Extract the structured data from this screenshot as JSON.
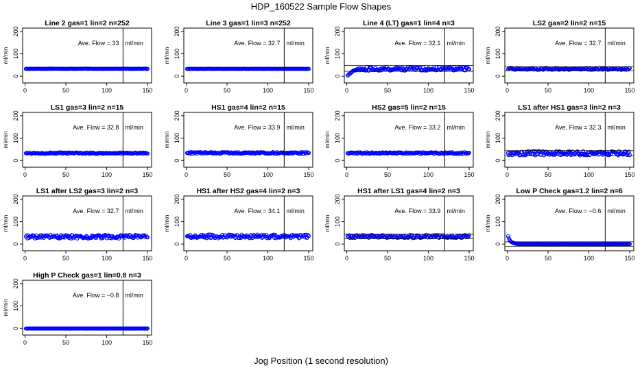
{
  "figure": {
    "title": "HDP_160522  Sample Flow Shapes",
    "xlabel": "Jog Position (1 second resolution)",
    "point_color": "#0000ff",
    "line_color": "#000000"
  },
  "chart_data": [
    {
      "type": "scatter",
      "title": "Line 2 gas=1 lin=2 n=252",
      "ylabel": "ml/min",
      "annotation": "Ave. Flow =  33",
      "unit": "ml/min",
      "xlim": [
        -3,
        155
      ],
      "ylim": [
        -30,
        215
      ],
      "xticks": [
        0,
        50,
        100,
        150
      ],
      "yticks": [
        0,
        100,
        200
      ],
      "vline": 120,
      "hlines": [],
      "y_mean": 33,
      "noise": 0.7,
      "start": null
    },
    {
      "type": "scatter",
      "title": "Line 3 gas=1 lin=3 n=252",
      "ylabel": "ml/min",
      "annotation": "Ave. Flow =  32.7",
      "unit": "ml/min",
      "xlim": [
        -3,
        155
      ],
      "ylim": [
        -30,
        215
      ],
      "xticks": [
        0,
        50,
        100,
        150
      ],
      "yticks": [
        0,
        100,
        200
      ],
      "vline": 120,
      "hlines": [],
      "y_mean": 32.7,
      "noise": 0.7,
      "start": null
    },
    {
      "type": "scatter",
      "title": "Line 4 (LT) gas=1 lin=4 n=3",
      "ylabel": "ml/min",
      "annotation": "Ave. Flow =  32.1",
      "unit": "ml/min",
      "xlim": [
        -3,
        155
      ],
      "ylim": [
        -30,
        215
      ],
      "xticks": [
        0,
        50,
        100,
        150
      ],
      "yticks": [
        0,
        100,
        200
      ],
      "vline": 120,
      "hlines": [
        22,
        48
      ],
      "y_mean": 33,
      "noise": 8,
      "start": "ramp"
    },
    {
      "type": "scatter",
      "title": "LS2 gas=2 lin=2 n=15",
      "ylabel": "ml/min",
      "annotation": "Ave. Flow =  32.7",
      "unit": "ml/min",
      "xlim": [
        -3,
        155
      ],
      "ylim": [
        -30,
        215
      ],
      "xticks": [
        0,
        50,
        100,
        150
      ],
      "yticks": [
        0,
        100,
        200
      ],
      "vline": 120,
      "hlines": [
        24,
        42
      ],
      "y_mean": 32.7,
      "noise": 4,
      "start": null
    },
    {
      "type": "scatter",
      "title": "LS1 gas=3 lin=2 n=15",
      "ylabel": "ml/min",
      "annotation": "Ave. Flow =  32.8",
      "unit": "ml/min",
      "xlim": [
        -3,
        155
      ],
      "ylim": [
        -30,
        215
      ],
      "xticks": [
        0,
        50,
        100,
        150
      ],
      "yticks": [
        0,
        100,
        200
      ],
      "vline": 120,
      "hlines": [],
      "y_mean": 32.8,
      "noise": 3,
      "start": null
    },
    {
      "type": "scatter",
      "title": "HS1 gas=4 lin=2 n=15",
      "ylabel": "ml/min",
      "annotation": "Ave. Flow =  33.9",
      "unit": "ml/min",
      "xlim": [
        -3,
        155
      ],
      "ylim": [
        -30,
        215
      ],
      "xticks": [
        0,
        50,
        100,
        150
      ],
      "yticks": [
        0,
        100,
        200
      ],
      "vline": 120,
      "hlines": [],
      "y_mean": 33.9,
      "noise": 3.5,
      "start": null
    },
    {
      "type": "scatter",
      "title": "HS2 gas=5 lin=2 n=15",
      "ylabel": "ml/min",
      "annotation": "Ave. Flow =  33.2",
      "unit": "ml/min",
      "xlim": [
        -3,
        155
      ],
      "ylim": [
        -30,
        215
      ],
      "xticks": [
        0,
        50,
        100,
        150
      ],
      "yticks": [
        0,
        100,
        200
      ],
      "vline": 120,
      "hlines": [],
      "y_mean": 33.2,
      "noise": 3.5,
      "start": null
    },
    {
      "type": "scatter",
      "title": "LS1 after HS1 gas=3 lin=2 n=3",
      "ylabel": "ml/min",
      "annotation": "Ave. Flow =  32.3",
      "unit": "ml/min",
      "xlim": [
        -3,
        155
      ],
      "ylim": [
        -30,
        215
      ],
      "xticks": [
        0,
        50,
        100,
        150
      ],
      "yticks": [
        0,
        100,
        200
      ],
      "vline": 120,
      "hlines": [
        21,
        44
      ],
      "y_mean": 32.3,
      "noise": 9,
      "start": null
    },
    {
      "type": "scatter",
      "title": "LS1 after LS2 gas=3 lin=2 n=3",
      "ylabel": "ml/min",
      "annotation": "Ave. Flow =  32.7",
      "unit": "ml/min",
      "xlim": [
        -3,
        155
      ],
      "ylim": [
        -30,
        215
      ],
      "xticks": [
        0,
        50,
        100,
        150
      ],
      "yticks": [
        0,
        100,
        200
      ],
      "vline": 120,
      "hlines": [],
      "y_mean": 32.7,
      "noise": 8,
      "start": null
    },
    {
      "type": "scatter",
      "title": "HS1 after HS2 gas=4 lin=2 n=3",
      "ylabel": "ml/min",
      "annotation": "Ave. Flow =  34.1",
      "unit": "ml/min",
      "xlim": [
        -3,
        155
      ],
      "ylim": [
        -30,
        215
      ],
      "xticks": [
        0,
        50,
        100,
        150
      ],
      "yticks": [
        0,
        100,
        200
      ],
      "vline": 120,
      "hlines": [],
      "y_mean": 34.1,
      "noise": 8,
      "start": null
    },
    {
      "type": "scatter",
      "title": "HS1 after LS1 gas=4 lin=2 n=3",
      "ylabel": "ml/min",
      "annotation": "Ave. Flow =  33.9",
      "unit": "ml/min",
      "xlim": [
        -3,
        155
      ],
      "ylim": [
        -30,
        215
      ],
      "xticks": [
        0,
        50,
        100,
        150
      ],
      "yticks": [
        0,
        100,
        200
      ],
      "vline": 120,
      "hlines": [
        24,
        44
      ],
      "y_mean": 33.9,
      "noise": 7,
      "start": null
    },
    {
      "type": "scatter",
      "title": "Low P Check gas=1.2 lin=2 n=6",
      "ylabel": "ml/min",
      "annotation": "Ave. Flow =  −0.6",
      "unit": "ml/min",
      "xlim": [
        -3,
        155
      ],
      "ylim": [
        -30,
        215
      ],
      "xticks": [
        0,
        50,
        100,
        150
      ],
      "yticks": [
        0,
        100,
        200
      ],
      "vline": 120,
      "hlines": [
        -10,
        10
      ],
      "y_mean": -0.5,
      "noise": 0.5,
      "start": "decay"
    },
    {
      "type": "scatter",
      "title": "High P Check gas=1 lin=0.8 n=3",
      "ylabel": "ml/min",
      "annotation": "Ave. Flow =  −0.8",
      "unit": "ml/min",
      "xlim": [
        -3,
        155
      ],
      "ylim": [
        -30,
        215
      ],
      "xticks": [
        0,
        50,
        100,
        150
      ],
      "yticks": [
        0,
        100,
        200
      ],
      "vline": 120,
      "hlines": [],
      "y_mean": -0.8,
      "noise": 0.3,
      "start": null
    }
  ]
}
